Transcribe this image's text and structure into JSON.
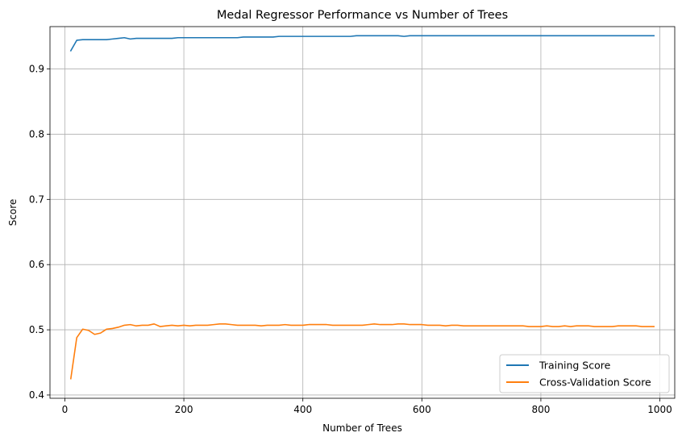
{
  "chart_data": {
    "type": "line",
    "title": "Medal Regressor Performance vs Number of Trees",
    "xlabel": "Number of Trees",
    "ylabel": "Score",
    "xlim": [
      -25,
      1025
    ],
    "ylim": [
      0.395,
      0.965
    ],
    "xticks": [
      0,
      200,
      400,
      600,
      800,
      1000
    ],
    "xtick_labels": [
      "0",
      "200",
      "400",
      "600",
      "800",
      "1000"
    ],
    "yticks": [
      0.4,
      0.5,
      0.6,
      0.7,
      0.8,
      0.9
    ],
    "ytick_labels": [
      "0.4",
      "0.5",
      "0.6",
      "0.7",
      "0.8",
      "0.9"
    ],
    "grid": true,
    "legend_position": "lower-right",
    "x": [
      10,
      20,
      30,
      40,
      50,
      60,
      70,
      80,
      90,
      100,
      110,
      120,
      130,
      140,
      150,
      160,
      170,
      180,
      190,
      200,
      210,
      220,
      230,
      240,
      250,
      260,
      270,
      280,
      290,
      300,
      310,
      320,
      330,
      340,
      350,
      360,
      370,
      380,
      390,
      400,
      410,
      420,
      430,
      440,
      450,
      460,
      470,
      480,
      490,
      500,
      510,
      520,
      530,
      540,
      550,
      560,
      570,
      580,
      590,
      600,
      610,
      620,
      630,
      640,
      650,
      660,
      670,
      680,
      690,
      700,
      710,
      720,
      730,
      740,
      750,
      760,
      770,
      780,
      790,
      800,
      810,
      820,
      830,
      840,
      850,
      860,
      870,
      880,
      890,
      900,
      910,
      920,
      930,
      940,
      950,
      960,
      970,
      980,
      990
    ],
    "series": [
      {
        "name": "Training Score",
        "color": "#1f77b4",
        "values": [
          0.928,
          0.944,
          0.945,
          0.945,
          0.945,
          0.945,
          0.945,
          0.946,
          0.947,
          0.948,
          0.946,
          0.947,
          0.947,
          0.947,
          0.947,
          0.947,
          0.947,
          0.947,
          0.948,
          0.948,
          0.948,
          0.948,
          0.948,
          0.948,
          0.948,
          0.948,
          0.948,
          0.948,
          0.948,
          0.949,
          0.949,
          0.949,
          0.949,
          0.949,
          0.949,
          0.95,
          0.95,
          0.95,
          0.95,
          0.95,
          0.95,
          0.95,
          0.95,
          0.95,
          0.95,
          0.95,
          0.95,
          0.95,
          0.951,
          0.951,
          0.951,
          0.951,
          0.951,
          0.951,
          0.951,
          0.951,
          0.95,
          0.951,
          0.951,
          0.951,
          0.951,
          0.951,
          0.951,
          0.951,
          0.951,
          0.951,
          0.951,
          0.951,
          0.951,
          0.951,
          0.951,
          0.951,
          0.951,
          0.951,
          0.951,
          0.951,
          0.951,
          0.951,
          0.951,
          0.951,
          0.951,
          0.951,
          0.951,
          0.951,
          0.951,
          0.951,
          0.951,
          0.951,
          0.951,
          0.951,
          0.951,
          0.951,
          0.951,
          0.951,
          0.951,
          0.951,
          0.951,
          0.951,
          0.951
        ]
      },
      {
        "name": "Cross-Validation Score",
        "color": "#ff7f0e",
        "values": [
          0.425,
          0.488,
          0.501,
          0.499,
          0.493,
          0.495,
          0.501,
          0.502,
          0.504,
          0.507,
          0.508,
          0.506,
          0.507,
          0.507,
          0.509,
          0.505,
          0.506,
          0.507,
          0.506,
          0.507,
          0.506,
          0.507,
          0.507,
          0.507,
          0.508,
          0.509,
          0.509,
          0.508,
          0.507,
          0.507,
          0.507,
          0.507,
          0.506,
          0.507,
          0.507,
          0.507,
          0.508,
          0.507,
          0.507,
          0.507,
          0.508,
          0.508,
          0.508,
          0.508,
          0.507,
          0.507,
          0.507,
          0.507,
          0.507,
          0.507,
          0.508,
          0.509,
          0.508,
          0.508,
          0.508,
          0.509,
          0.509,
          0.508,
          0.508,
          0.508,
          0.507,
          0.507,
          0.507,
          0.506,
          0.507,
          0.507,
          0.506,
          0.506,
          0.506,
          0.506,
          0.506,
          0.506,
          0.506,
          0.506,
          0.506,
          0.506,
          0.506,
          0.505,
          0.505,
          0.505,
          0.506,
          0.505,
          0.505,
          0.506,
          0.505,
          0.506,
          0.506,
          0.506,
          0.505,
          0.505,
          0.505,
          0.505,
          0.506,
          0.506,
          0.506,
          0.506,
          0.505,
          0.505,
          0.505
        ]
      }
    ]
  }
}
